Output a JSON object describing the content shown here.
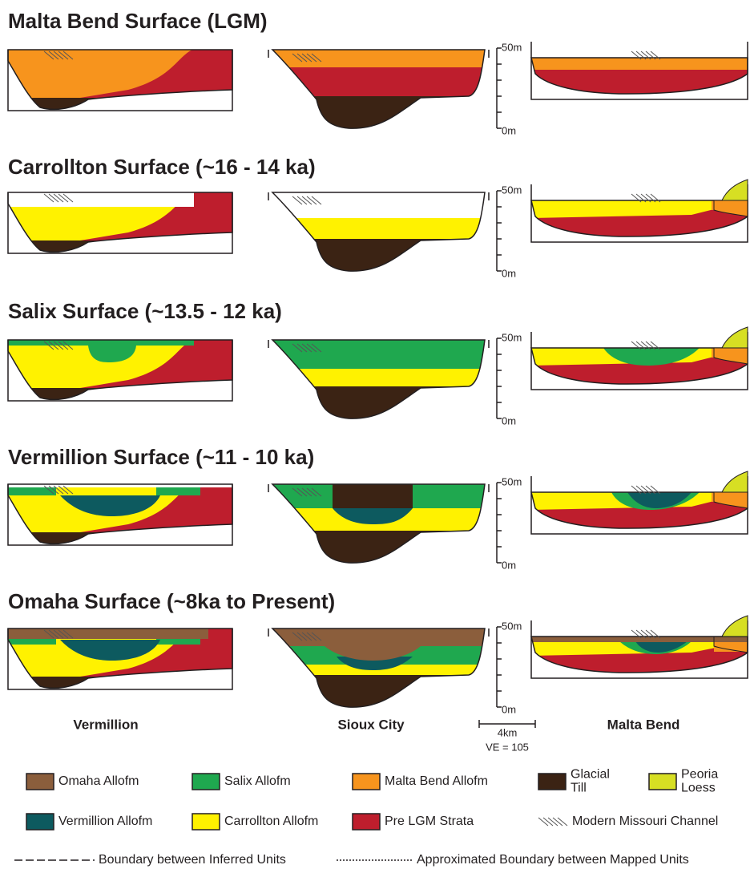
{
  "panels": [
    {
      "title": "Malta Bend Surface (LGM)",
      "scale_top": "50m",
      "scale_bottom": "0m"
    },
    {
      "title": "Carrollton Surface (~16 - 14 ka)",
      "scale_top": "50m",
      "scale_bottom": "0m"
    },
    {
      "title": "Salix Surface (~13.5 - 12 ka)",
      "scale_top": "50m",
      "scale_bottom": "0m"
    },
    {
      "title": "Vermillion Surface (~11 - 10 ka)",
      "scale_top": "50m",
      "scale_bottom": "0m"
    },
    {
      "title": "Omaha Surface (~8ka to Present)",
      "scale_top": "50m",
      "scale_bottom": "0m"
    }
  ],
  "sites": [
    "Vermillion",
    "Sioux City",
    "Malta Bend"
  ],
  "scale_bar": {
    "length": "4km",
    "exaggeration": "VE = 105"
  },
  "legend": {
    "units": [
      {
        "lines": [
          "Omaha Allofm"
        ],
        "color": "#8b5e3c"
      },
      {
        "lines": [
          "Salix Allofm"
        ],
        "color": "#1fa84f"
      },
      {
        "lines": [
          "Malta Bend Allofm"
        ],
        "color": "#f7941d"
      },
      {
        "lines": [
          "Glacial",
          "Till"
        ],
        "color": "#3b2314"
      },
      {
        "lines": [
          "Peoria",
          "Loess"
        ],
        "color": "#d7df23"
      },
      {
        "lines": [
          "Vermillion Allofm"
        ],
        "color": "#0d5a5f"
      },
      {
        "lines": [
          "Carrollton Allofm"
        ],
        "color": "#fff200"
      },
      {
        "lines": [
          "Pre LGM Strata"
        ],
        "color": "#be1e2d"
      }
    ],
    "channel": "Modern Missouri Channel",
    "inferred_boundary": "Boundary between Inferred Units",
    "approximated_boundary": "Approximated Boundary between Mapped Units"
  }
}
